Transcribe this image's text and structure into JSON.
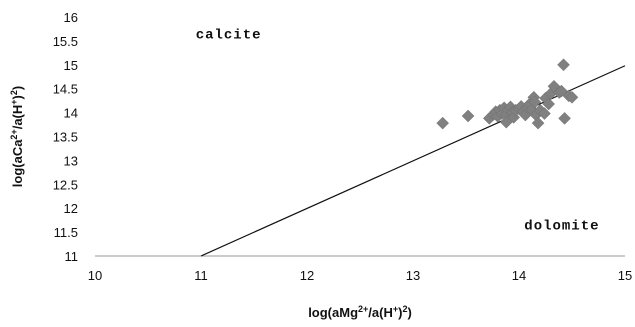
{
  "chart_data": {
    "type": "scatter",
    "title": "",
    "xlabel_parts": [
      "log(aMg",
      "2+",
      "/a(H",
      "+",
      ")",
      "2",
      ")"
    ],
    "ylabel_parts": [
      "log(aCa",
      "2+",
      "/a(H",
      "+",
      ")",
      "2",
      ")"
    ],
    "xlim": [
      10,
      15
    ],
    "ylim": [
      11,
      16
    ],
    "x_ticks": [
      "10",
      "11",
      "12",
      "13",
      "14",
      "15"
    ],
    "y_ticks": [
      "11",
      "11.5",
      "12",
      "12.5",
      "13",
      "13.5",
      "14",
      "14.5",
      "15",
      "15.5",
      "16"
    ],
    "grid": false,
    "legend": "none",
    "annotations": [
      {
        "text": "calcite",
        "x": 10.95,
        "y": 15.55
      },
      {
        "text": "dolomite",
        "x": 14.05,
        "y": 11.55
      }
    ],
    "boundary_line": {
      "x": [
        11.0,
        15.0
      ],
      "y": [
        11.0,
        14.98
      ]
    },
    "series": [
      {
        "marker": "diamond",
        "color": "#808080",
        "points": [
          [
            13.28,
            13.78
          ],
          [
            13.52,
            13.93
          ],
          [
            13.72,
            13.88
          ],
          [
            13.76,
            13.96
          ],
          [
            13.78,
            14.02
          ],
          [
            13.8,
            13.92
          ],
          [
            13.82,
            14.05
          ],
          [
            13.84,
            13.98
          ],
          [
            13.86,
            14.1
          ],
          [
            13.88,
            13.95
          ],
          [
            13.88,
            13.8
          ],
          [
            13.9,
            14.06
          ],
          [
            13.92,
            14.12
          ],
          [
            13.94,
            14.0
          ],
          [
            13.95,
            13.9
          ],
          [
            13.97,
            14.05
          ],
          [
            14.0,
            14.08
          ],
          [
            14.02,
            14.13
          ],
          [
            14.04,
            14.02
          ],
          [
            14.06,
            13.95
          ],
          [
            14.08,
            14.1
          ],
          [
            14.1,
            14.18
          ],
          [
            14.12,
            14.06
          ],
          [
            14.14,
            14.32
          ],
          [
            14.15,
            14.22
          ],
          [
            14.16,
            13.95
          ],
          [
            14.18,
            13.78
          ],
          [
            14.2,
            14.05
          ],
          [
            14.24,
            13.98
          ],
          [
            14.25,
            14.3
          ],
          [
            14.28,
            14.18
          ],
          [
            14.3,
            14.4
          ],
          [
            14.33,
            14.55
          ],
          [
            14.38,
            14.42
          ],
          [
            14.4,
            14.45
          ],
          [
            14.42,
            15.0
          ],
          [
            14.43,
            13.88
          ],
          [
            14.47,
            14.35
          ],
          [
            14.5,
            14.32
          ]
        ]
      }
    ]
  }
}
